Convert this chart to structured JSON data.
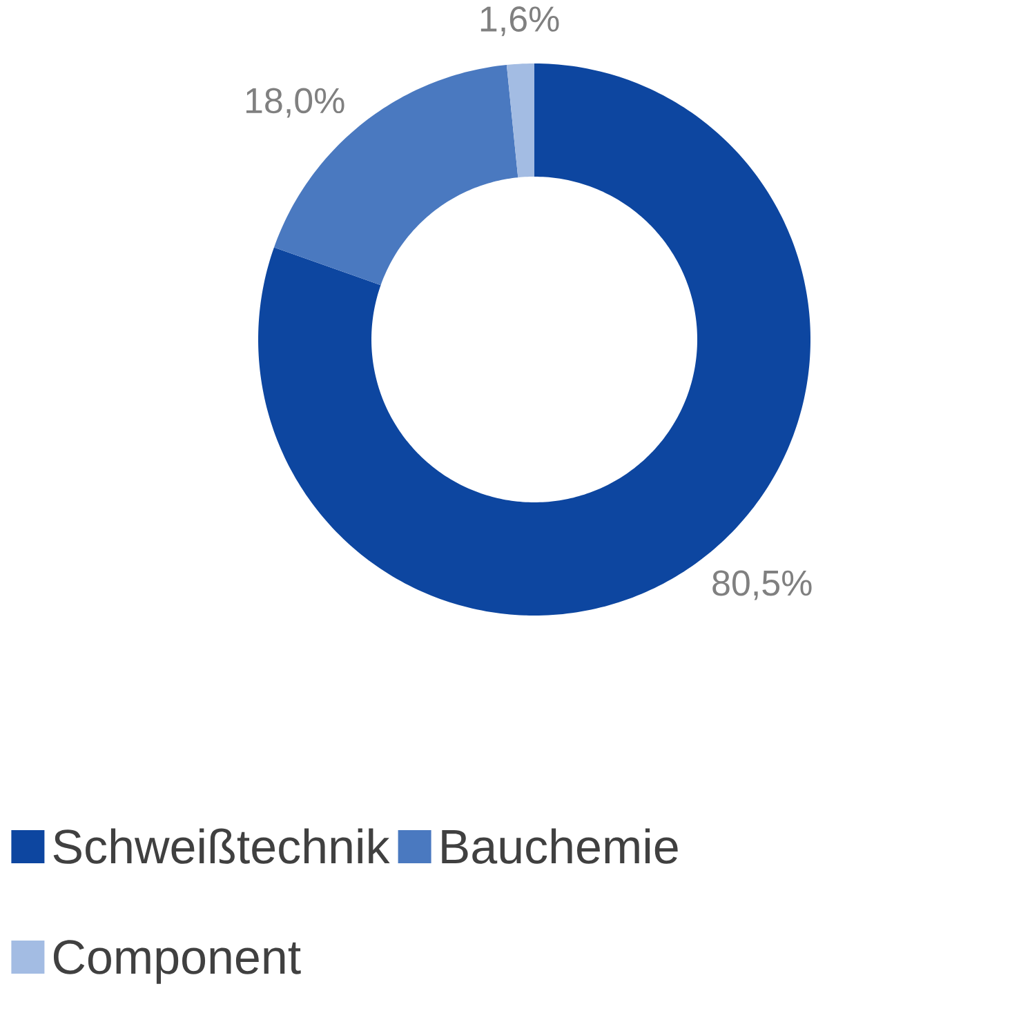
{
  "chart_data": {
    "type": "donut",
    "categories": [
      "Schweißtechnik",
      "Bauchemie",
      "Component"
    ],
    "values": [
      80.5,
      18.0,
      1.6
    ],
    "colors": [
      "#0d46a0",
      "#4a79c0",
      "#a3bce3"
    ],
    "value_labels": [
      "80,5%",
      "18,0%",
      "1,6%"
    ],
    "legend": "bottom"
  }
}
